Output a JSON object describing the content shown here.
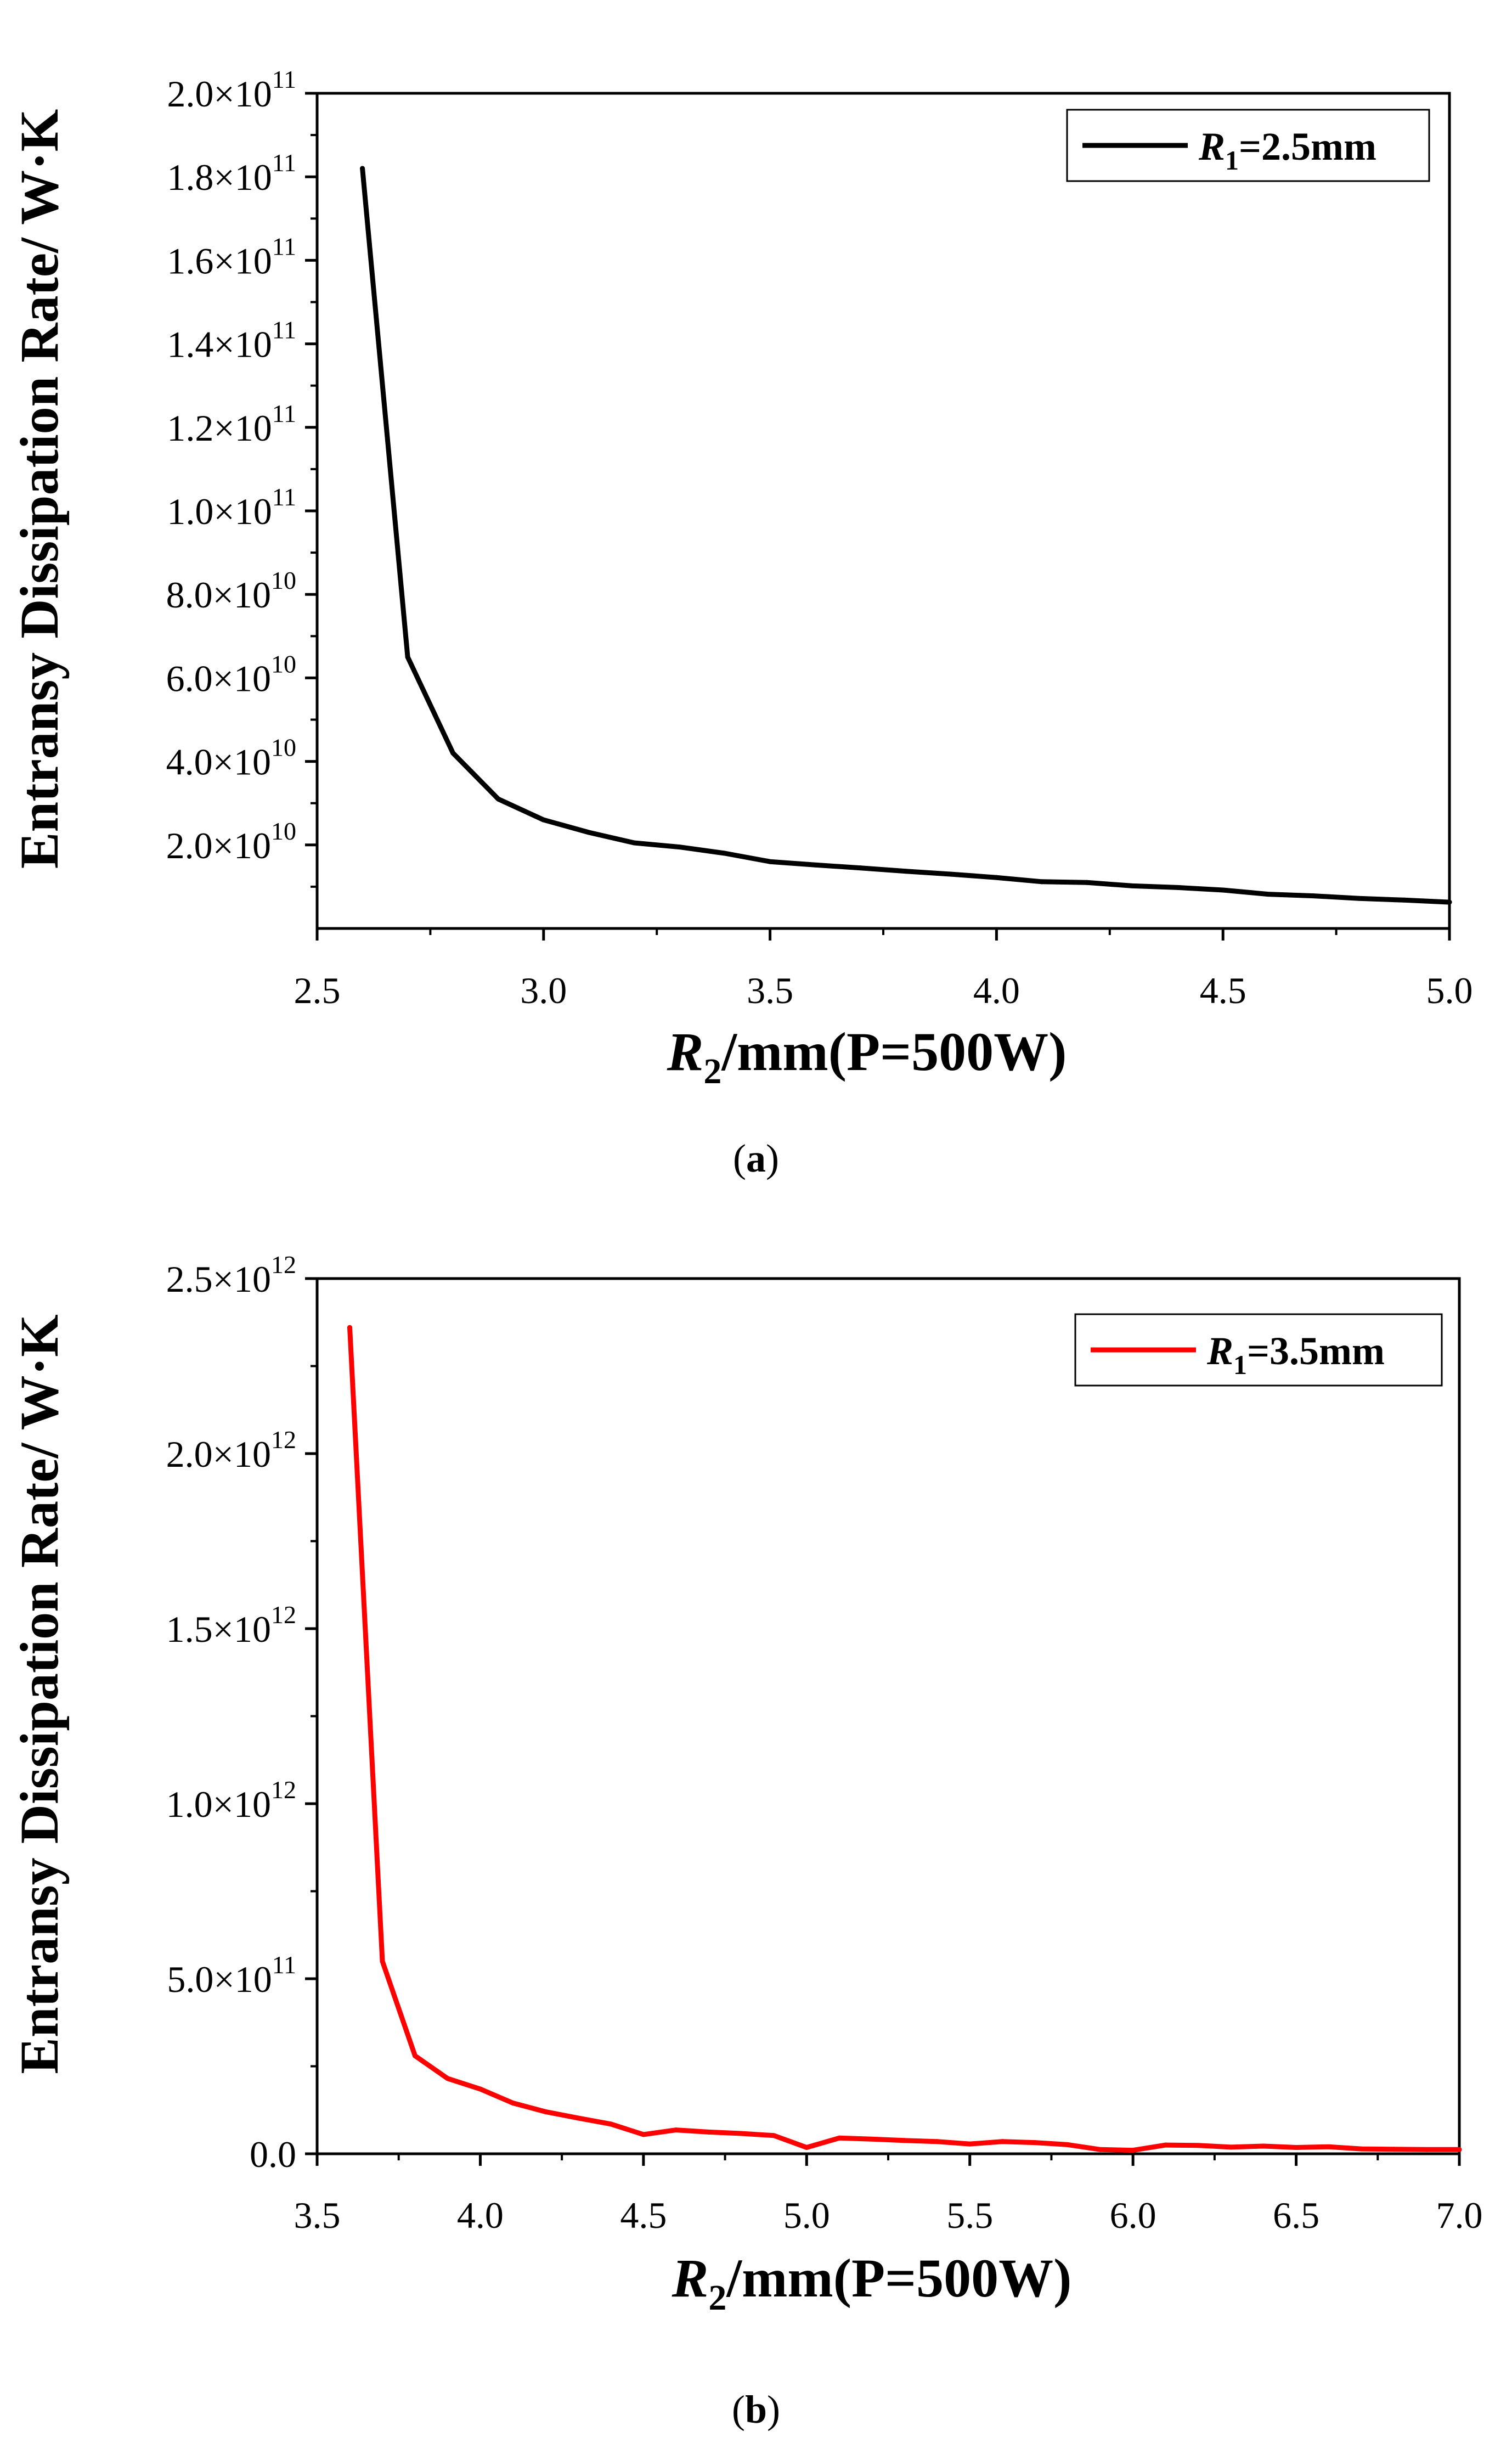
{
  "chart_data": [
    {
      "type": "line",
      "panel_label": "(a)",
      "caption_open": "(",
      "caption_letter": "a",
      "caption_close": ")",
      "xlabel_var": "R",
      "xlabel_sub": "2",
      "xlabel_rest": "/mm(P=500W)",
      "ylabel": "Entransy Dissipation Rate/ W·K",
      "xlim": [
        2.5,
        5.0
      ],
      "ylim": [
        0,
        200000000000.0
      ],
      "xticks": [
        "2.5",
        "3.0",
        "3.5",
        "4.0",
        "4.5",
        "5.0"
      ],
      "yticks": [
        {
          "value": 20000000000.0,
          "mantissa": "2.0×10",
          "exp": "10"
        },
        {
          "value": 40000000000.0,
          "mantissa": "4.0×10",
          "exp": "10"
        },
        {
          "value": 60000000000.0,
          "mantissa": "6.0×10",
          "exp": "10"
        },
        {
          "value": 80000000000.0,
          "mantissa": "8.0×10",
          "exp": "10"
        },
        {
          "value": 100000000000.0,
          "mantissa": "1.0×10",
          "exp": "11"
        },
        {
          "value": 120000000000.0,
          "mantissa": "1.2×10",
          "exp": "11"
        },
        {
          "value": 140000000000.0,
          "mantissa": "1.4×10",
          "exp": "11"
        },
        {
          "value": 160000000000.0,
          "mantissa": "1.6×10",
          "exp": "11"
        },
        {
          "value": 180000000000.0,
          "mantissa": "1.8×10",
          "exp": "11"
        },
        {
          "value": 200000000000.0,
          "mantissa": "2.0×10",
          "exp": "11"
        }
      ],
      "legend": {
        "var": "R",
        "sub": "1",
        "rest": "=2.5mm",
        "position": "top-right"
      },
      "series": [
        {
          "name": "R1=2.5mm",
          "color": "#000000",
          "x": [
            2.6,
            2.7,
            2.8,
            2.9,
            3.0,
            3.1,
            3.2,
            3.3,
            3.4,
            3.5,
            3.6,
            3.7,
            3.8,
            3.9,
            4.0,
            4.1,
            4.2,
            4.3,
            4.4,
            4.5,
            4.6,
            4.7,
            4.8,
            4.9,
            5.0
          ],
          "values": [
            182000000000.0,
            65000000000.0,
            42000000000.0,
            31000000000.0,
            26000000000.0,
            23000000000.0,
            20500000000.0,
            19500000000.0,
            18000000000.0,
            16000000000.0,
            15200000000.0,
            14500000000.0,
            13700000000.0,
            13000000000.0,
            12200000000.0,
            11200000000.0,
            11000000000.0,
            10200000000.0,
            9800000000.0,
            9200000000.0,
            8200000000.0,
            7800000000.0,
            7200000000.0,
            6800000000.0,
            6300000000.0
          ]
        }
      ]
    },
    {
      "type": "line",
      "panel_label": "(b)",
      "caption_open": "(",
      "caption_letter": "b",
      "caption_close": ")",
      "xlabel_var": "R",
      "xlabel_sub": "2",
      "xlabel_rest": "/mm(P=500W)",
      "ylabel": "Entransy Dissipation Rate/ W·K",
      "xlim": [
        3.5,
        7.0
      ],
      "ylim": [
        0,
        2500000000000.0
      ],
      "xticks": [
        "3.5",
        "4.0",
        "4.5",
        "5.0",
        "5.5",
        "6.0",
        "6.5",
        "7.0"
      ],
      "yticks": [
        {
          "value": 0,
          "mantissa": "0.0",
          "exp": ""
        },
        {
          "value": 500000000000.0,
          "mantissa": "5.0×10",
          "exp": "11"
        },
        {
          "value": 1000000000000.0,
          "mantissa": "1.0×10",
          "exp": "12"
        },
        {
          "value": 1500000000000.0,
          "mantissa": "1.5×10",
          "exp": "12"
        },
        {
          "value": 2000000000000.0,
          "mantissa": "2.0×10",
          "exp": "12"
        },
        {
          "value": 2500000000000.0,
          "mantissa": "2.5×10",
          "exp": "12"
        }
      ],
      "legend": {
        "var": "R",
        "sub": "1",
        "rest": "=3.5mm",
        "position": "top-right"
      },
      "series": [
        {
          "name": "R1=3.5mm",
          "color": "#ff0000",
          "x": [
            3.6,
            3.7,
            3.8,
            3.9,
            4.0,
            4.1,
            4.2,
            4.3,
            4.4,
            4.5,
            4.6,
            4.7,
            4.8,
            4.9,
            5.0,
            5.1,
            5.2,
            5.3,
            5.4,
            5.5,
            5.6,
            5.7,
            5.8,
            5.9,
            6.0,
            6.1,
            6.2,
            6.3,
            6.4,
            6.5,
            6.6,
            6.7,
            6.8,
            6.9,
            7.0
          ],
          "values": [
            2360000000000.0,
            550000000000.0,
            280000000000.0,
            215000000000.0,
            185000000000.0,
            145000000000.0,
            120000000000.0,
            102000000000.0,
            85000000000.0,
            55000000000.0,
            68000000000.0,
            62000000000.0,
            58000000000.0,
            52000000000.0,
            18000000000.0,
            45000000000.0,
            42000000000.0,
            38000000000.0,
            35000000000.0,
            28000000000.0,
            35000000000.0,
            32000000000.0,
            26000000000.0,
            12000000000.0,
            10000000000.0,
            25000000000.0,
            24000000000.0,
            19000000000.0,
            22000000000.0,
            18000000000.0,
            20000000000.0,
            14000000000.0,
            13000000000.0,
            12000000000.0,
            12000000000.0
          ]
        }
      ]
    }
  ]
}
